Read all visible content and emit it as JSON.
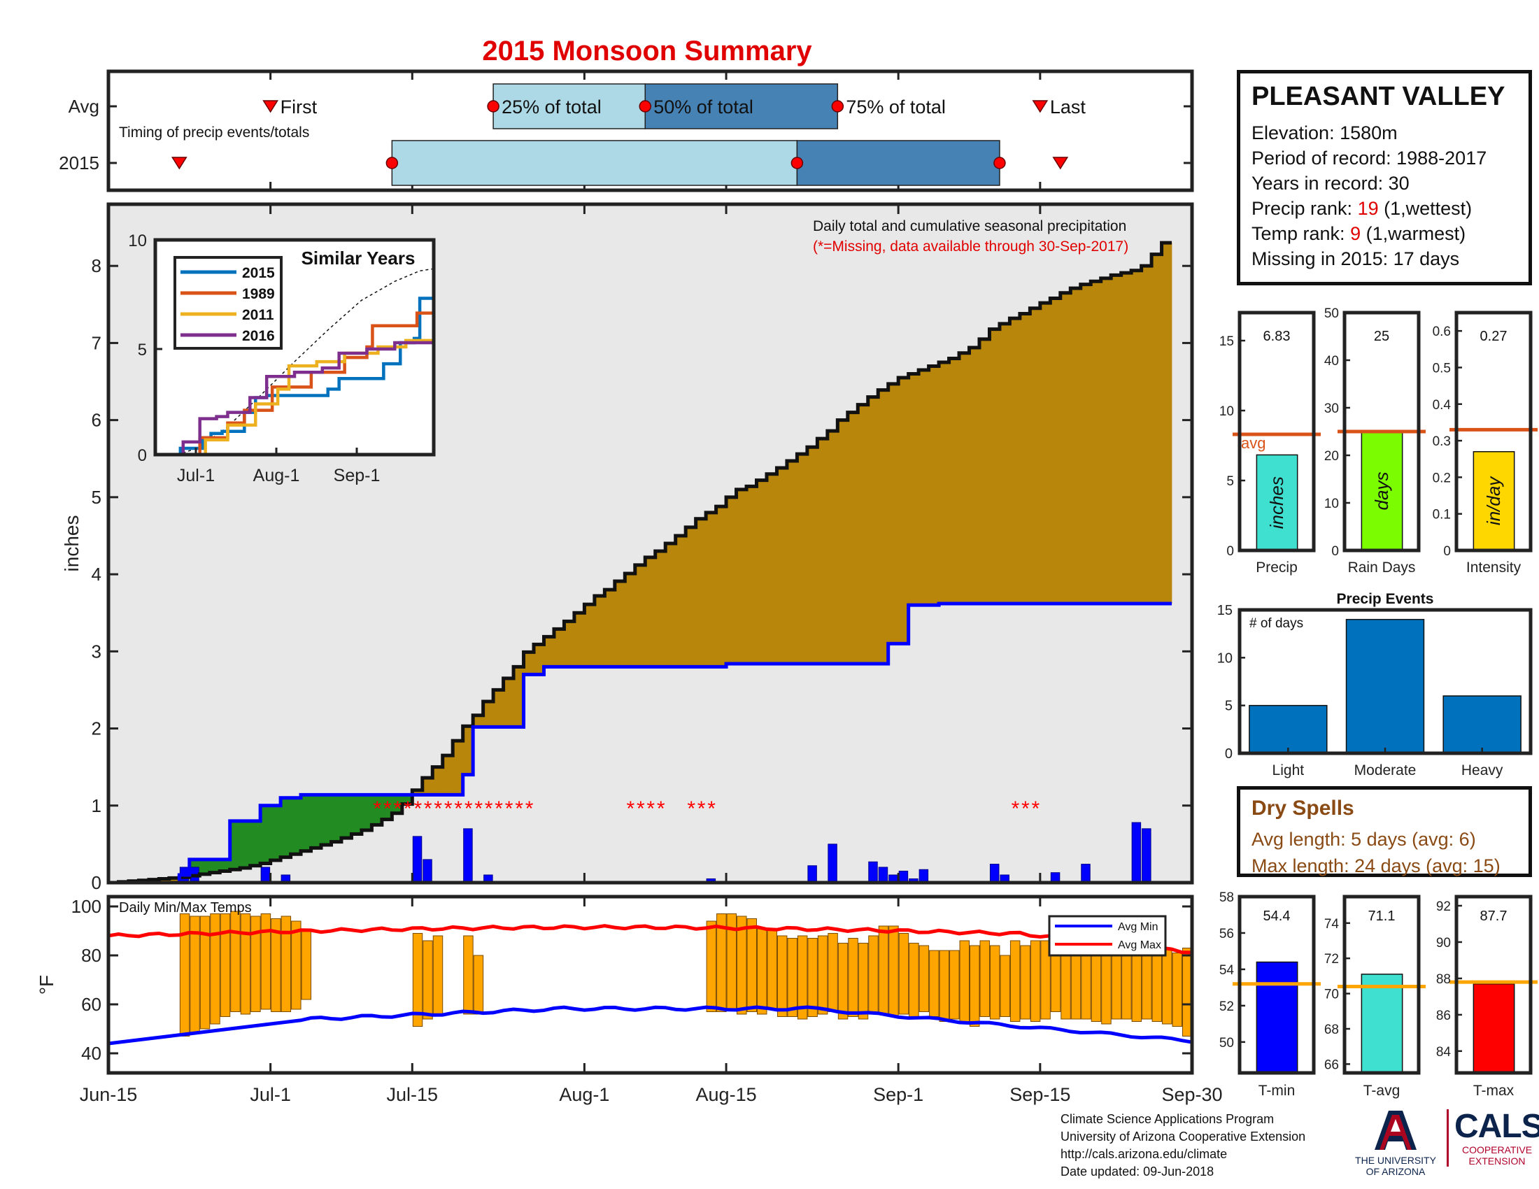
{
  "title": "2015 Monsoon Summary",
  "colors": {
    "title": "#e00000",
    "green": "#228b22",
    "gold": "#b8860b",
    "light": "#e9e8e8",
    "blue": "#0000ff",
    "bar": "#0000ff",
    "orange": "#ffa500",
    "red": "#ff0000",
    "lightblue": "#add8e6",
    "steelblue": "#4682b4"
  },
  "station": {
    "name": "PLEASANT VALLEY",
    "elevation": "Elevation: 1580m",
    "period": "Period of record: 1988-2017",
    "years": "Years in record: 30",
    "precip_rank_label": "Precip rank: ",
    "precip_rank": "19",
    "precip_rank_note": " (1,wettest)",
    "temp_rank_label": "Temp rank: ",
    "temp_rank": "9",
    "temp_rank_note": " (1,warmest)",
    "missing": "Missing in 2015: 17 days"
  },
  "dry_spells": {
    "title": "Dry Spells",
    "avg": "Avg length: 5 days (avg: 6)",
    "max": "Max length: 24 days (avg: 15)"
  },
  "footer": {
    "line1": "Climate Science Applications Program",
    "line2": "University of Arizona Cooperative Extension",
    "line3": "http://cals.arizona.edu/climate",
    "line4": " Date updated: 09-Jun-2018",
    "ua_logo_line1": "THE UNIVERSITY",
    "ua_logo_line2": "OF ARIZONA",
    "cals_logo": "CALS",
    "cals_line1": "COOPERATIVE",
    "cals_line2": "EXTENSION"
  },
  "chart_data": [
    {
      "id": "timing",
      "type": "timeline",
      "rows": [
        "Avg",
        "2015"
      ],
      "note": "Timing of precip events/totals",
      "labels": {
        "first": "First",
        "last": "Last",
        "p25": "25% of total",
        "p50": "50% of total",
        "p75": "75% of total"
      },
      "avg": {
        "first": 16,
        "p25": 38,
        "p50": 53,
        "p75": 72,
        "last": 92
      },
      "y2015": {
        "first": 7,
        "p25": 28,
        "p50": 68,
        "p75": 88,
        "last": 94
      }
    },
    {
      "id": "cumulative",
      "type": "area",
      "title": "Daily total and cumulative seasonal precipitation",
      "subtitle": "(*=Missing, data available through 30-Sep-2017)",
      "ylabel": "inches",
      "ylim": [
        0,
        8.8
      ],
      "yticks": [
        0,
        1,
        2,
        3,
        4,
        5,
        6,
        7,
        8
      ],
      "xticks": [
        {
          "day": 0,
          "label": "Jun-15"
        },
        {
          "day": 15,
          "label": "Jul-1"
        },
        {
          "day": 30,
          "label": "Jul-15"
        },
        {
          "day": 45,
          "label": "Aug-1"
        },
        {
          "day": 59,
          "label": "Aug-15"
        },
        {
          "day": 75,
          "label": "Sep-1"
        },
        {
          "day": 89,
          "label": "Sep-15"
        },
        {
          "day": 104,
          "label": "Sep-30"
        }
      ],
      "avg_cumulative": [
        0,
        0.01,
        0.02,
        0.03,
        0.04,
        0.05,
        0.06,
        0.07,
        0.09,
        0.11,
        0.13,
        0.15,
        0.17,
        0.19,
        0.22,
        0.25,
        0.29,
        0.33,
        0.37,
        0.41,
        0.45,
        0.49,
        0.53,
        0.58,
        0.63,
        0.68,
        0.75,
        0.82,
        0.9,
        1.02,
        1.2,
        1.36,
        1.5,
        1.65,
        1.84,
        2.03,
        2.17,
        2.35,
        2.5,
        2.65,
        2.8,
        2.99,
        3.09,
        3.19,
        3.29,
        3.39,
        3.5,
        3.61,
        3.72,
        3.8,
        3.91,
        4.01,
        4.12,
        4.22,
        4.3,
        4.4,
        4.5,
        4.61,
        4.72,
        4.8,
        4.88,
        5.0,
        5.1,
        5.14,
        5.22,
        5.3,
        5.38,
        5.47,
        5.56,
        5.65,
        5.76,
        5.86,
        6.0,
        6.1,
        6.2,
        6.3,
        6.39,
        6.47,
        6.55,
        6.6,
        6.65,
        6.7,
        6.75,
        6.8,
        6.87,
        6.94,
        7.05,
        7.18,
        7.25,
        7.32,
        7.38,
        7.45,
        7.52,
        7.58,
        7.65,
        7.71,
        7.76,
        7.8,
        7.84,
        7.88,
        7.91,
        7.94,
        8.0,
        8.15,
        8.3
      ],
      "cum_2015": [
        0,
        0,
        0,
        0,
        0,
        0,
        0,
        0.1,
        0.3,
        0.3,
        0.3,
        0.3,
        0.8,
        0.8,
        0.8,
        1.0,
        1.0,
        1.1,
        1.1,
        1.14,
        1.14,
        1.14,
        1.14,
        1.14,
        1.14,
        1.14,
        1.14,
        1.14,
        1.14,
        1.14,
        1.14,
        1.14,
        1.14,
        1.14,
        1.14,
        1.4,
        2.02,
        2.02,
        2.02,
        2.02,
        2.02,
        2.7,
        2.7,
        2.8,
        2.8,
        2.8,
        2.8,
        2.8,
        2.8,
        2.8,
        2.8,
        2.8,
        2.8,
        2.8,
        2.8,
        2.8,
        2.8,
        2.8,
        2.8,
        2.8,
        2.8,
        2.84,
        2.84,
        2.84,
        2.84,
        2.84,
        2.84,
        2.84,
        2.84,
        2.84,
        2.84,
        2.84,
        2.84,
        2.84,
        2.84,
        2.84,
        2.84,
        3.1,
        3.1,
        3.6,
        3.6,
        3.6,
        3.62,
        3.62,
        3.62,
        3.62,
        3.62,
        3.62,
        3.62,
        3.62,
        3.62,
        3.62,
        3.62,
        3.62,
        3.62,
        3.62,
        3.62,
        3.62,
        3.62,
        3.62,
        3.62,
        3.62,
        3.62,
        3.62,
        3.62
      ],
      "cum_2015_note": "blue line values are approximate",
      "missing_days": [],
      "daily_2015": [
        0,
        0,
        0,
        0,
        0,
        0,
        0,
        0.2,
        0.2,
        0,
        0,
        0,
        0,
        0,
        0,
        0.2,
        0,
        0.1,
        0,
        0,
        0,
        0,
        0,
        0,
        0,
        0,
        0,
        0,
        0,
        0,
        0.6,
        0.3,
        0,
        0,
        0,
        0.7,
        0,
        0.1,
        0,
        0,
        0,
        0,
        0,
        0,
        0,
        0,
        0,
        0,
        0,
        0,
        0,
        0,
        0,
        0,
        0,
        0,
        0,
        0,
        0,
        0.05,
        0,
        0,
        0,
        0,
        0,
        0,
        0,
        0,
        0,
        0.22,
        0,
        0.5,
        0,
        0,
        0,
        0.27,
        0.2,
        0.1,
        0.15,
        0.05,
        0.17,
        0,
        0,
        0,
        0,
        0,
        0,
        0.24,
        0.1,
        0,
        0,
        0,
        0,
        0.13,
        0,
        0,
        0.24,
        0,
        0,
        0,
        0,
        0.78,
        0.7,
        0,
        0,
        0
      ]
    },
    {
      "id": "similar_years",
      "type": "line",
      "title": "Similar Years",
      "ylim": [
        0,
        10
      ],
      "yticks": [
        0,
        5,
        10
      ],
      "xticks": [
        "Jul-1",
        "Aug-1",
        "Sep-1"
      ],
      "series": [
        {
          "name": "2015",
          "color": "#0072bd"
        },
        {
          "name": "1989",
          "color": "#d95319"
        },
        {
          "name": "2011",
          "color": "#edb120"
        },
        {
          "name": "2016",
          "color": "#7e2f8e"
        }
      ]
    },
    {
      "id": "totals",
      "type": "bar",
      "panels": [
        {
          "label": "Precip",
          "value": 6.83,
          "value_text": "6.83",
          "unit": "inches",
          "ymax": 17,
          "yticks": [
            0,
            5,
            10,
            15
          ],
          "avg": 8.3,
          "avg_label": "avg",
          "color": "#40e0d0"
        },
        {
          "label": "Rain Days",
          "value": 25,
          "value_text": "25",
          "unit": "days",
          "ymax": 50,
          "yticks": [
            0,
            10,
            20,
            30,
            40,
            50
          ],
          "avg": 25,
          "color": "#7cfc00"
        },
        {
          "label": "Intensity",
          "value": 0.27,
          "value_text": "0.27",
          "unit": "in/day",
          "ymax": 0.65,
          "yticks": [
            0,
            0.1,
            0.2,
            0.3,
            0.4,
            0.5,
            0.6
          ],
          "avg": 0.33,
          "color": "#ffd700"
        }
      ]
    },
    {
      "id": "precip_events",
      "type": "bar",
      "title": "Precip Events",
      "ylabel": "# of days",
      "categories": [
        "Light",
        "Moderate",
        "Heavy"
      ],
      "values": [
        5,
        14,
        6
      ],
      "ylim": [
        0,
        15
      ],
      "yticks": [
        0,
        5,
        10,
        15
      ]
    },
    {
      "id": "temps",
      "type": "bar",
      "title": "Daily Min/Max Temps",
      "ylabel": "°F",
      "ylim": [
        32,
        104
      ],
      "yticks": [
        40,
        60,
        80,
        100
      ],
      "legend": [
        "Avg Min",
        "Avg Max"
      ]
    },
    {
      "id": "temp_summary",
      "type": "bar",
      "panels": [
        {
          "label": "T-min",
          "value": 54.4,
          "value_text": "54.4",
          "yticks": [
            50,
            52,
            54,
            56,
            58
          ],
          "ylim": [
            48.3,
            58
          ],
          "avg": 53.2,
          "color": "#0000ff"
        },
        {
          "label": "T-avg",
          "value": 71.1,
          "value_text": "71.1",
          "yticks": [
            66,
            68,
            70,
            72,
            74
          ],
          "ylim": [
            65.5,
            75.5
          ],
          "avg": 70.4,
          "color": "#40e0d0"
        },
        {
          "label": "T-max",
          "value": 87.7,
          "value_text": "87.7",
          "yticks": [
            84,
            86,
            88,
            90,
            92
          ],
          "ylim": [
            82.8,
            92.5
          ],
          "avg": 87.8,
          "color": "#ff0000"
        }
      ]
    }
  ]
}
